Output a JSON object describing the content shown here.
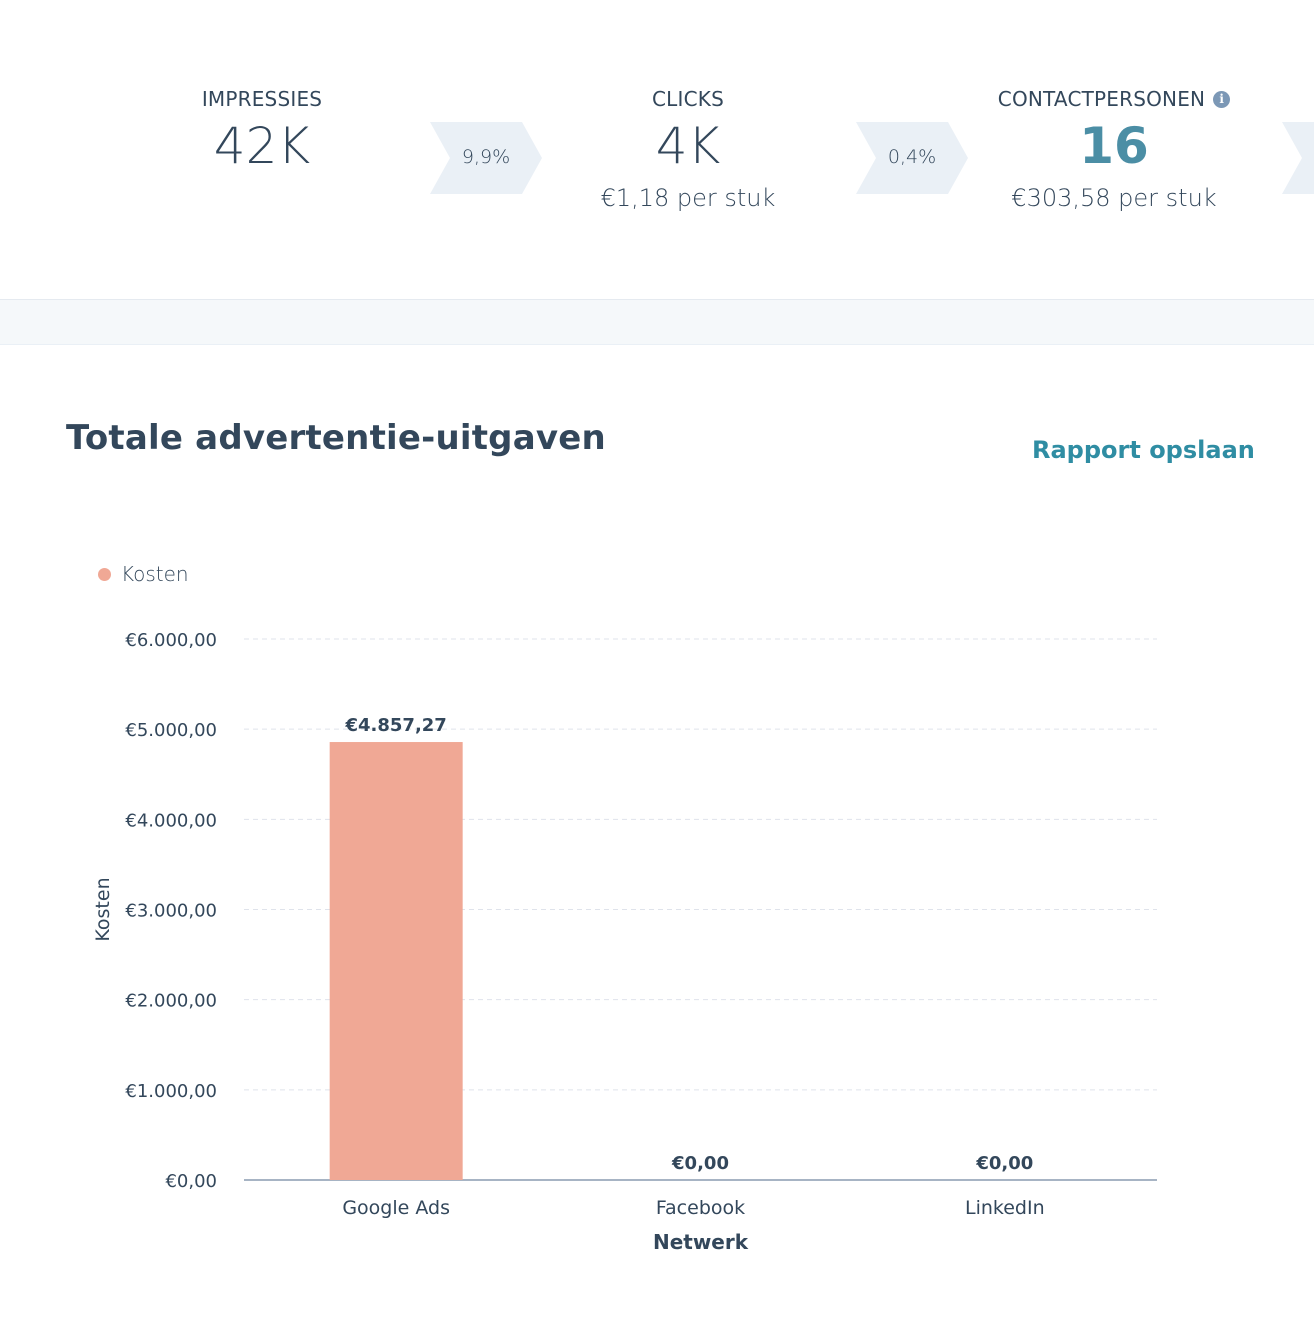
{
  "funnel": {
    "metrics": [
      {
        "label": "IMPRESSIES",
        "value": "42K",
        "sub": ""
      },
      {
        "label": "CLICKS",
        "value": "4K",
        "sub": "€1,18 per stuk"
      },
      {
        "label": "CONTACTPERSONEN",
        "value": "16",
        "sub": "€303,58 per stuk"
      }
    ],
    "rates": [
      "9,9%",
      "0,4%"
    ]
  },
  "report": {
    "title": "Totale advertentie-uitgaven",
    "save_label": "Rapport opslaan"
  },
  "colors": {
    "bar": "#f0a895",
    "accent": "#4b8ea5",
    "link": "#2f8da3",
    "chevron": "#eaf0f6"
  },
  "icons": {
    "info": "info-icon"
  },
  "chart_data": {
    "type": "bar",
    "categories": [
      "Google Ads",
      "Facebook",
      "LinkedIn"
    ],
    "series": [
      {
        "name": "Kosten",
        "values": [
          4857.27,
          0,
          0
        ]
      }
    ],
    "value_labels": [
      "€4.857,27",
      "€0,00",
      "€0,00"
    ],
    "xlabel": "Netwerk",
    "ylabel": "Kosten",
    "ylim": [
      0,
      6000
    ],
    "yticks": [
      0,
      1000,
      2000,
      3000,
      4000,
      5000,
      6000
    ],
    "ytick_labels": [
      "€0,00",
      "€1.000,00",
      "€2.000,00",
      "€3.000,00",
      "€4.000,00",
      "€5.000,00",
      "€6.000,00"
    ],
    "grid": true,
    "legend": "top-left"
  }
}
